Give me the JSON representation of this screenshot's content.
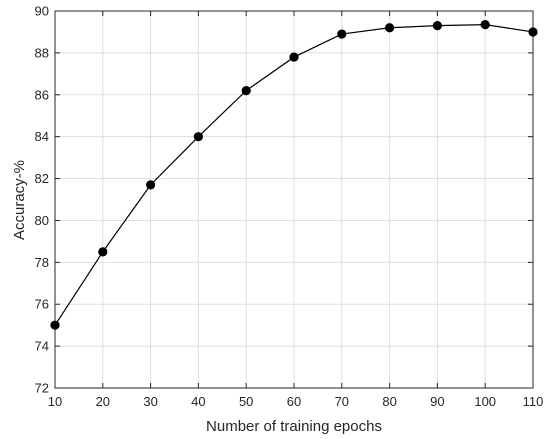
{
  "chart_data": {
    "type": "line",
    "title": "",
    "xlabel": "Number of training epochs",
    "ylabel": "Accuracy-%",
    "xlim": [
      10,
      110
    ],
    "ylim": [
      72,
      90
    ],
    "xticks": [
      10,
      20,
      30,
      40,
      50,
      60,
      70,
      80,
      90,
      100,
      110
    ],
    "yticks": [
      72,
      74,
      76,
      78,
      80,
      82,
      84,
      86,
      88,
      90
    ],
    "grid": true,
    "legend": "none",
    "series": [
      {
        "x": [
          10,
          20,
          30,
          40,
          50,
          60,
          70,
          80,
          90,
          100,
          110
        ],
        "y": [
          75.0,
          78.5,
          81.7,
          84.0,
          86.2,
          87.8,
          88.9,
          89.2,
          89.3,
          89.35,
          89.0
        ],
        "color": "#000000",
        "marker": "circle"
      }
    ]
  }
}
